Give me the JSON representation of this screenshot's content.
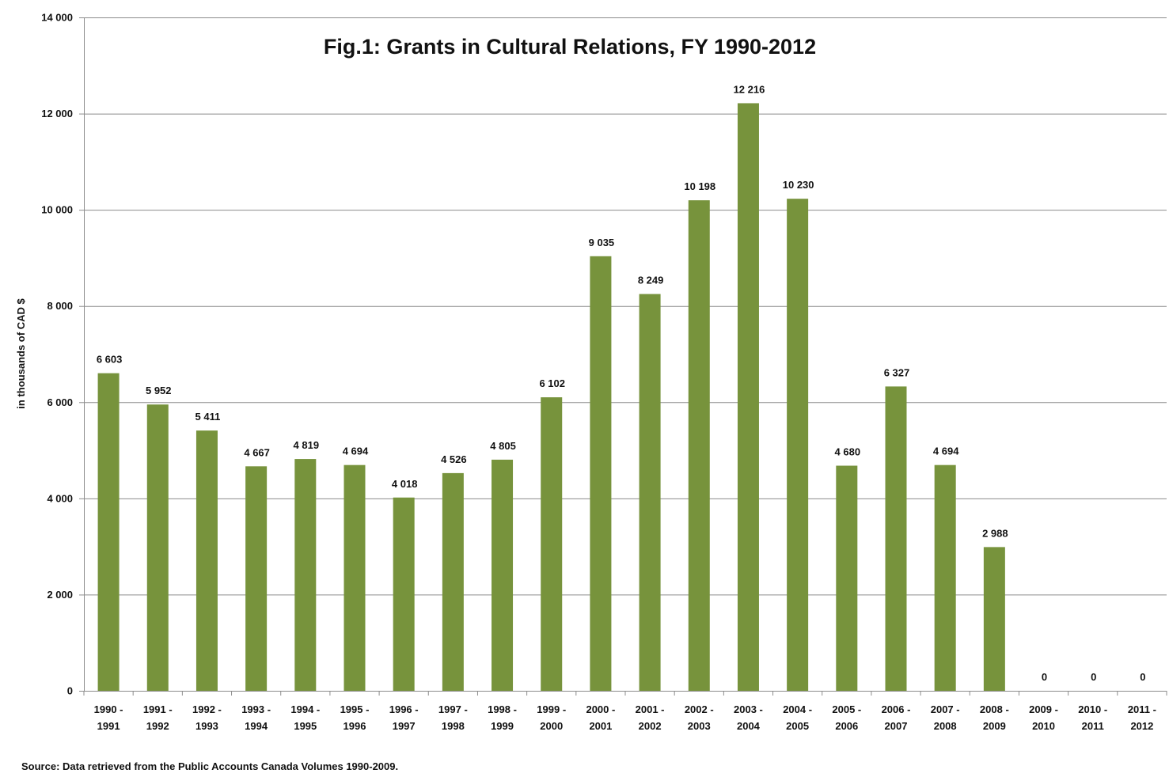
{
  "chart_data": {
    "type": "bar",
    "title": "Fig.1: Grants in Cultural Relations, FY 1990-2012",
    "xlabel": "",
    "ylabel": "in thousands of CAD $",
    "ylim": [
      0,
      14000
    ],
    "yticks": [
      "0",
      "2 000",
      "4 000",
      "6 000",
      "8 000",
      "10 000",
      "12 000",
      "14 000"
    ],
    "ytick_values": [
      0,
      2000,
      4000,
      6000,
      8000,
      10000,
      12000,
      14000
    ],
    "grid": true,
    "bar_color": "#77933C",
    "categories": [
      [
        "1990 -",
        "1991"
      ],
      [
        "1991 -",
        "1992"
      ],
      [
        "1992 -",
        "1993"
      ],
      [
        "1993 -",
        "1994"
      ],
      [
        "1994 -",
        "1995"
      ],
      [
        "1995 -",
        "1996"
      ],
      [
        "1996 -",
        "1997"
      ],
      [
        "1997 -",
        "1998"
      ],
      [
        "1998 -",
        "1999"
      ],
      [
        "1999 -",
        "2000"
      ],
      [
        "2000 -",
        "2001"
      ],
      [
        "2001 -",
        "2002"
      ],
      [
        "2002 -",
        "2003"
      ],
      [
        "2003 -",
        "2004"
      ],
      [
        "2004 -",
        "2005"
      ],
      [
        "2005 -",
        "2006"
      ],
      [
        "2006 -",
        "2007"
      ],
      [
        "2007 -",
        "2008"
      ],
      [
        "2008 -",
        "2009"
      ],
      [
        "2009 -",
        "2010"
      ],
      [
        "2010 -",
        "2011"
      ],
      [
        "2011 -",
        "2012"
      ]
    ],
    "values": [
      6603,
      5952,
      5411,
      4667,
      4819,
      4694,
      4018,
      4526,
      4805,
      6102,
      9035,
      8249,
      10198,
      12216,
      10230,
      4680,
      6327,
      4694,
      2988,
      0,
      0,
      0
    ],
    "data_labels": [
      "6 603",
      "5 952",
      "5 411",
      "4 667",
      "4 819",
      "4 694",
      "4 018",
      "4 526",
      "4 805",
      "6 102",
      "9 035",
      "8 249",
      "10 198",
      "12 216",
      "10 230",
      "4 680",
      "6 327",
      "4 694",
      "2 988",
      "0",
      "0",
      "0"
    ],
    "source": "Source: Data  retrieved from the Public  Accounts Canada  Volumes 1990-2009."
  }
}
